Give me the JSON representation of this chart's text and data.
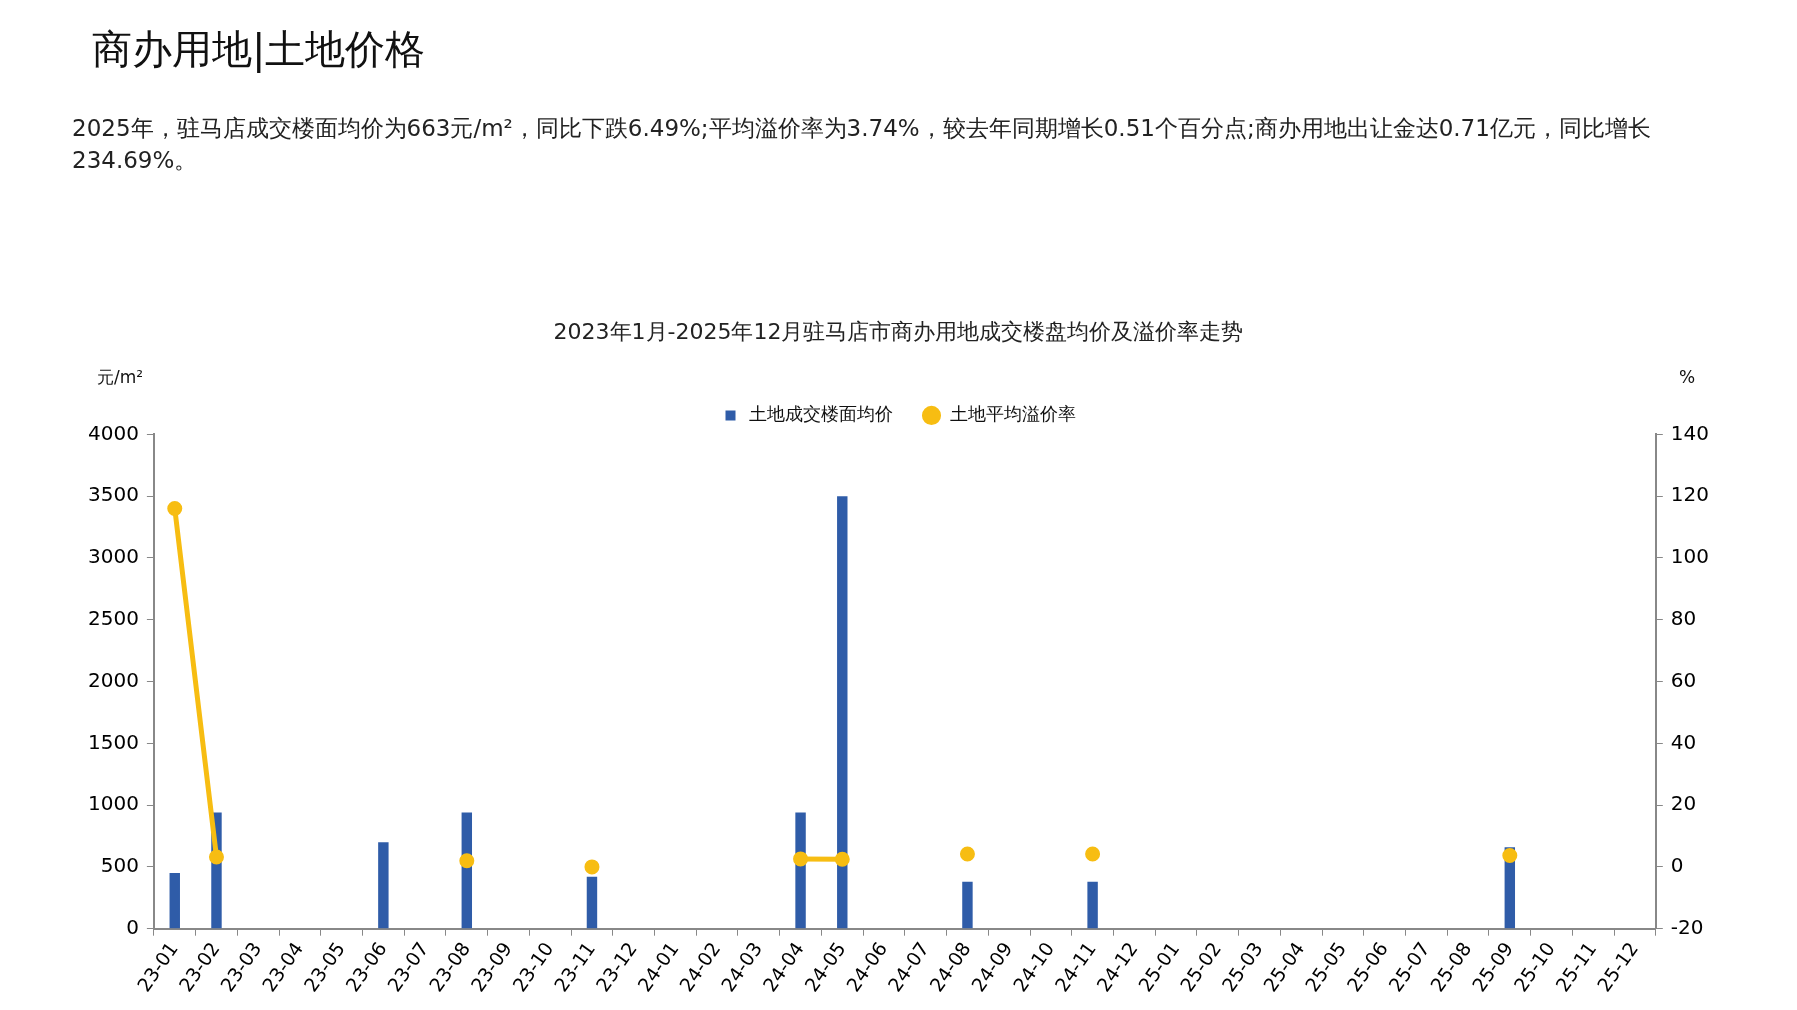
{
  "chart_data": {
    "type": "bar",
    "title": "2023年1月-2025年12月驻马店市商办用地成交楼盘均价及溢价率走势",
    "ylabel": "元/m²",
    "y2label": "%",
    "annotations": [
      "商办用地|土地价格",
      "2025年，驻马店成交楼面均价为663元/m²，同比下跌6.49%;平均溢价率为3.74%，较去年同期增长0.51个百分点;商办用地出让金达0.71亿元，同比增长234.69%。"
    ],
    "categories": [
      "23-01",
      "23-02",
      "23-03",
      "23-04",
      "23-05",
      "23-06",
      "23-07",
      "23-08",
      "23-09",
      "23-10",
      "23-11",
      "23-12",
      "24-01",
      "24-02",
      "24-03",
      "24-04",
      "24-05",
      "24-06",
      "24-07",
      "24-08",
      "24-09",
      "24-10",
      "24-11",
      "24-12",
      "25-01",
      "25-02",
      "25-03",
      "25-04",
      "25-05",
      "25-06",
      "25-07",
      "25-08",
      "25-09",
      "25-10",
      "25-11",
      "25-12"
    ],
    "series": [
      {
        "name": "土地成交楼面均价",
        "color": "#2f5ca8",
        "values": [
          450,
          940,
          null,
          null,
          null,
          700,
          null,
          940,
          null,
          null,
          420,
          null,
          null,
          null,
          null,
          940,
          3500,
          null,
          null,
          380,
          null,
          null,
          380,
          null,
          null,
          null,
          null,
          null,
          null,
          null,
          null,
          null,
          660,
          null,
          null,
          null
        ]
      },
      {
        "name": "土地平均溢价率",
        "type": "line",
        "axis": "y2",
        "color": "#f7bd12",
        "marker": "circle",
        "values": [
          116,
          3.2,
          null,
          null,
          null,
          null,
          null,
          2,
          null,
          null,
          0,
          null,
          null,
          null,
          null,
          2.6,
          2.5,
          null,
          null,
          4.2,
          null,
          null,
          4.2,
          null,
          null,
          null,
          null,
          null,
          null,
          null,
          null,
          null,
          3.7,
          null,
          null,
          null
        ]
      }
    ],
    "ylim": [
      0,
      4000
    ],
    "yticks": [
      0,
      500,
      1000,
      1500,
      2000,
      2500,
      3000,
      3500,
      4000
    ],
    "y2lim": [
      -20,
      140
    ],
    "y2ticks": [
      -20,
      0,
      20,
      40,
      60,
      80,
      100,
      120,
      140
    ],
    "grid": false,
    "legend": "top"
  }
}
